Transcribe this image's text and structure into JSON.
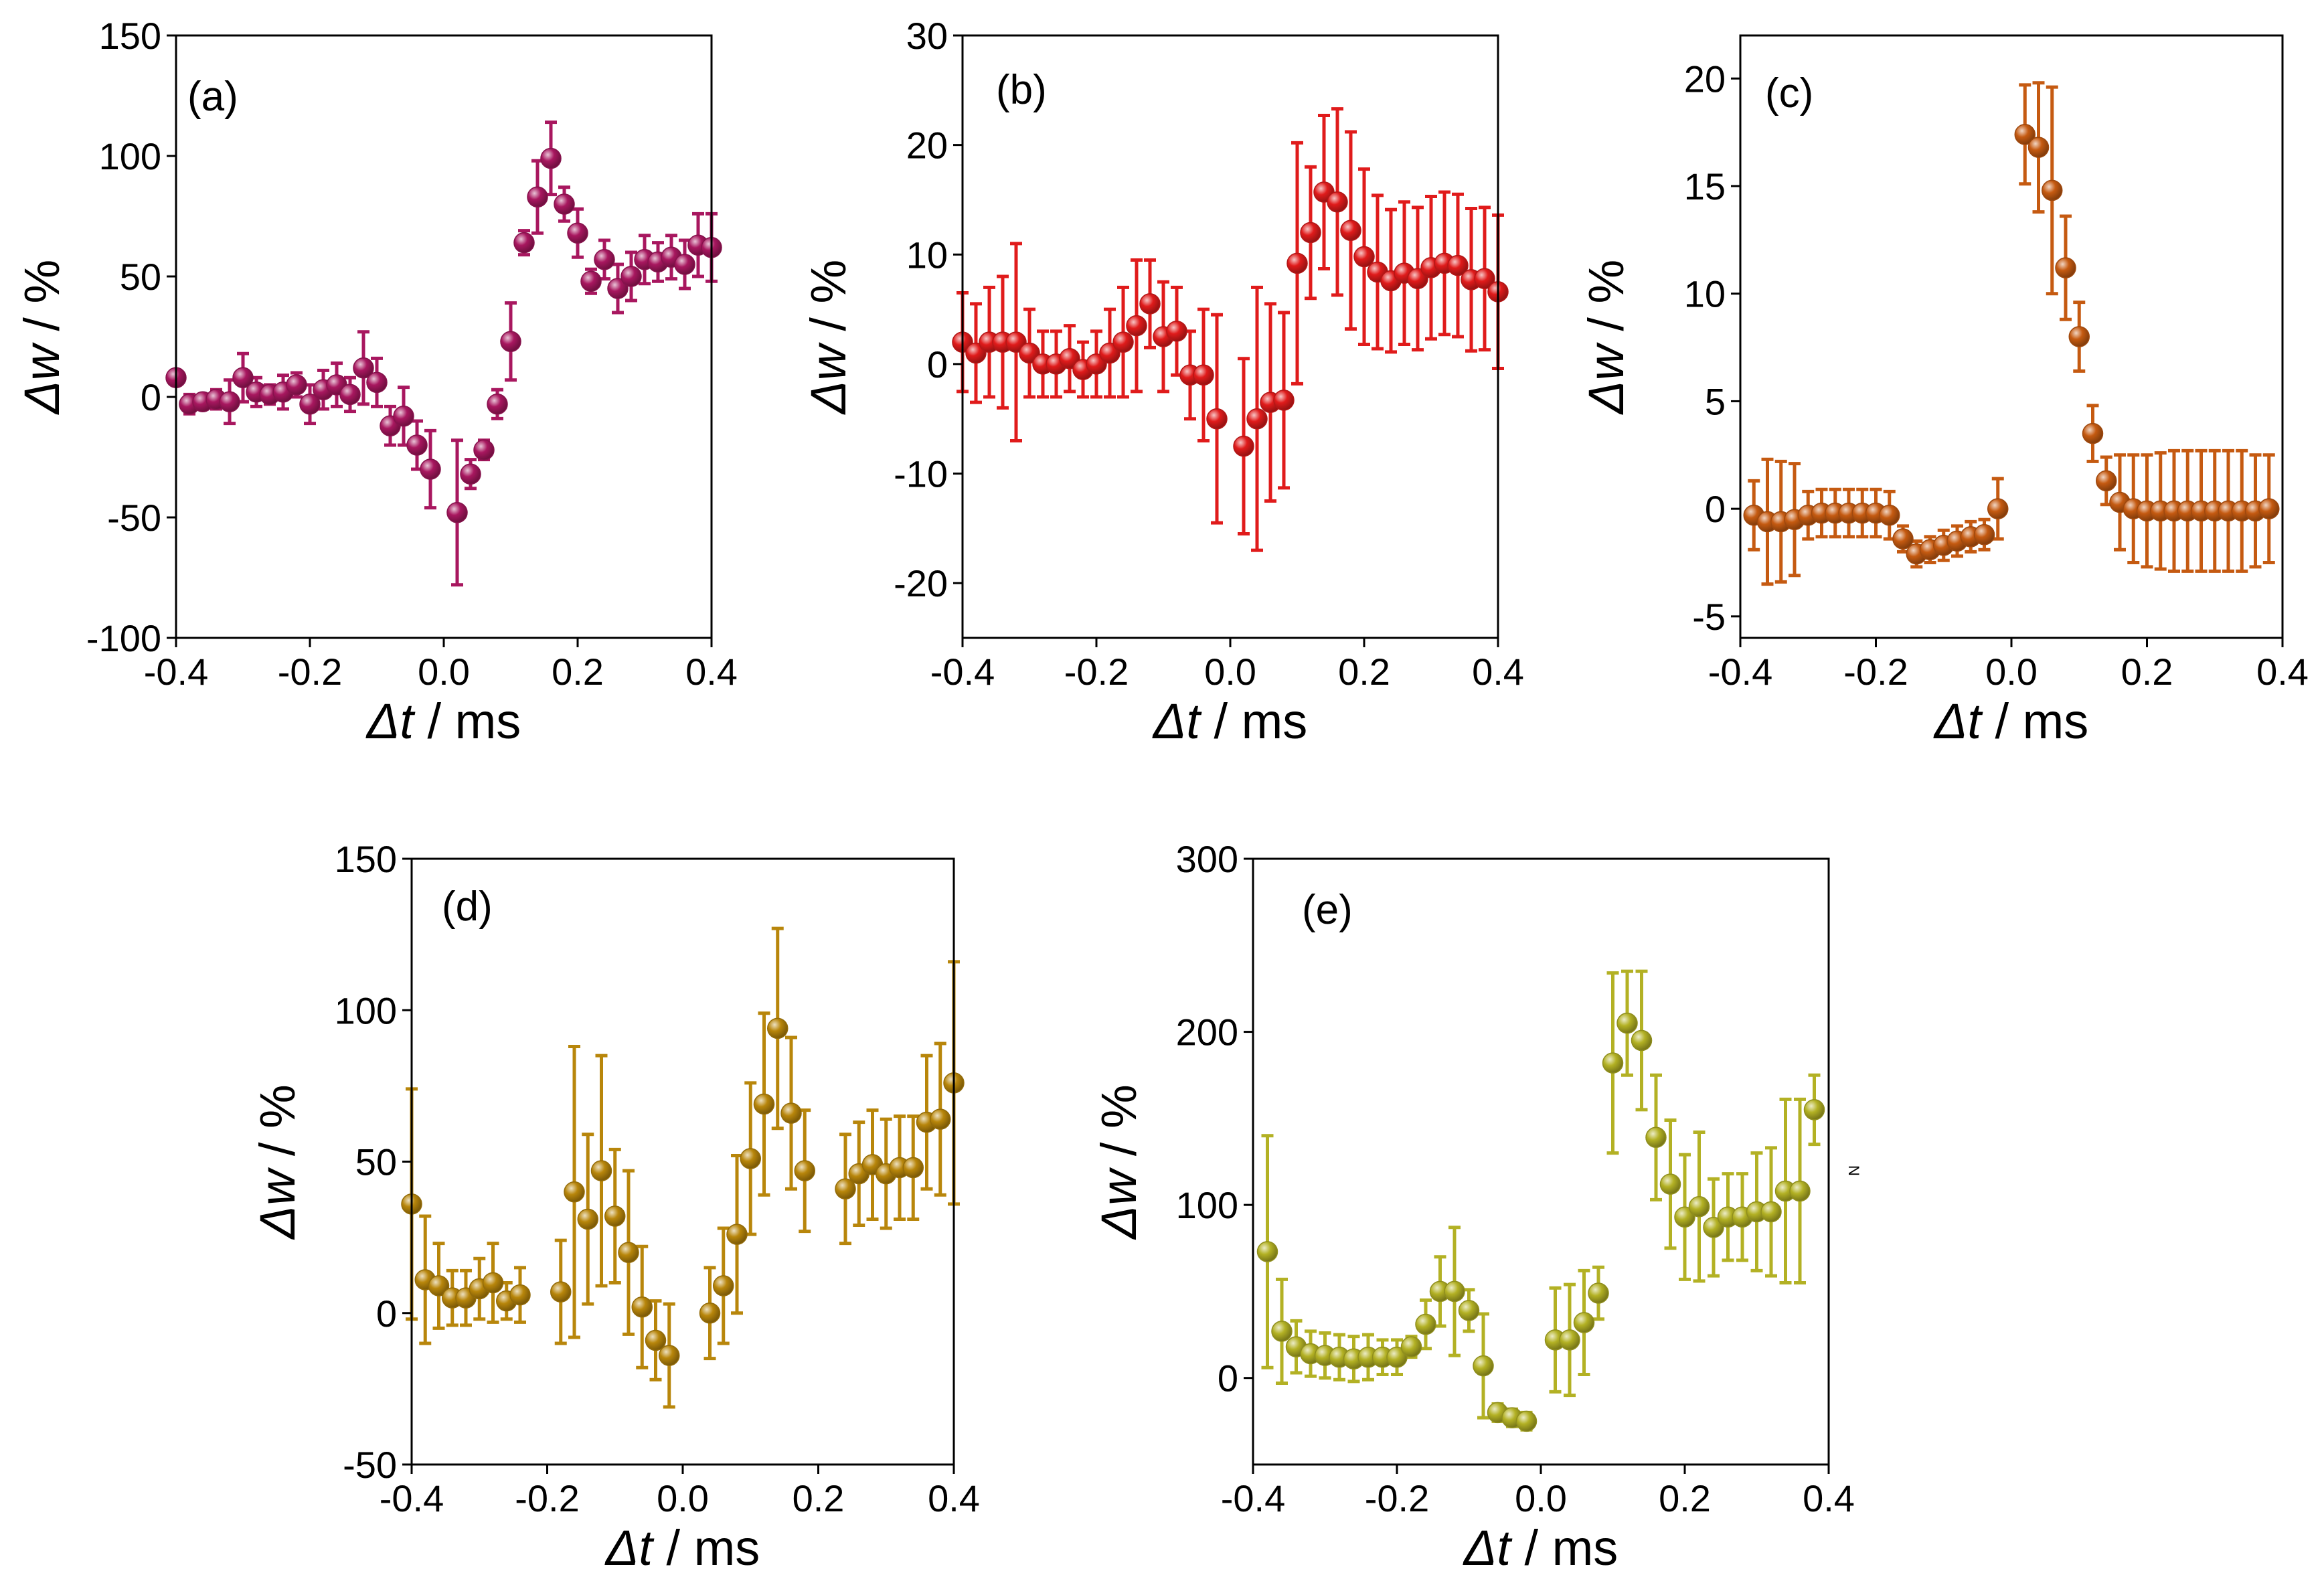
{
  "figure": {
    "margin_label": "N"
  },
  "chart_data": [
    {
      "id": "a",
      "type": "scatter",
      "panel_label": "(a)",
      "xlabel_sym": "Δt",
      "xlabel_unit": "/ ms",
      "ylabel_sym": "Δw",
      "ylabel_unit": "/ %",
      "xlim": [
        -0.4,
        0.4
      ],
      "ylim": [
        -100,
        150
      ],
      "xticks": [
        -0.4,
        -0.2,
        0.0,
        0.2,
        0.4
      ],
      "xtick_labels": [
        "-0.4",
        "-0.2",
        "0.0",
        "0.2",
        "0.4"
      ],
      "yticks": [
        -100,
        -50,
        0,
        50,
        100,
        150
      ],
      "ytick_labels": [
        "-100",
        "-50",
        "0",
        "50",
        "100",
        "150"
      ],
      "color": "#a8175f",
      "x": [
        -0.4,
        -0.38,
        -0.36,
        -0.34,
        -0.32,
        -0.3,
        -0.28,
        -0.26,
        -0.24,
        -0.22,
        -0.2,
        -0.18,
        -0.16,
        -0.14,
        -0.12,
        -0.1,
        -0.08,
        -0.06,
        -0.04,
        -0.02,
        0.02,
        0.04,
        0.06,
        0.08,
        0.1,
        0.12,
        0.14,
        0.16,
        0.18,
        0.2,
        0.22,
        0.24,
        0.26,
        0.28,
        0.3,
        0.32,
        0.34,
        0.36,
        0.38,
        0.4
      ],
      "y": [
        8,
        -3,
        -2,
        -1,
        -2,
        8,
        2,
        1,
        2,
        5,
        -3,
        3,
        5,
        1,
        12,
        6,
        -12,
        -8,
        -20,
        -30,
        -48,
        -32,
        -22,
        -3,
        23,
        64,
        83,
        99,
        80,
        68,
        48,
        57,
        45,
        50,
        57,
        56,
        58,
        55,
        63,
        62
      ],
      "err": [
        3,
        4,
        3,
        4,
        9,
        10,
        6,
        4,
        7,
        5,
        8,
        8,
        9,
        7,
        15,
        10,
        8,
        12,
        10,
        16,
        30,
        6,
        4,
        6,
        16,
        5,
        15,
        15,
        7,
        10,
        5,
        8,
        10,
        10,
        10,
        8,
        9,
        10,
        13,
        14
      ]
    },
    {
      "id": "b",
      "type": "scatter",
      "panel_label": "(b)",
      "xlabel_sym": "Δt",
      "xlabel_unit": "/ ms",
      "ylabel_sym": "Δw",
      "ylabel_unit": "/ %",
      "xlim": [
        -0.4,
        0.4
      ],
      "ylim": [
        -25,
        30
      ],
      "xticks": [
        -0.4,
        -0.2,
        0.0,
        0.2,
        0.4
      ],
      "xtick_labels": [
        "-0.4",
        "-0.2",
        "0.0",
        "0.2",
        "0.4"
      ],
      "yticks": [
        -20,
        -10,
        0,
        10,
        20,
        30
      ],
      "ytick_labels": [
        "-20",
        "-10",
        "0",
        "10",
        "20",
        "30"
      ],
      "color": "#e01b1b",
      "x": [
        -0.4,
        -0.38,
        -0.36,
        -0.34,
        -0.32,
        -0.3,
        -0.28,
        -0.26,
        -0.24,
        -0.22,
        -0.2,
        -0.18,
        -0.16,
        -0.14,
        -0.12,
        -0.1,
        -0.08,
        -0.06,
        -0.04,
        -0.02,
        0.02,
        0.04,
        0.06,
        0.08,
        0.1,
        0.12,
        0.14,
        0.16,
        0.18,
        0.2,
        0.22,
        0.24,
        0.26,
        0.28,
        0.3,
        0.32,
        0.34,
        0.36,
        0.38,
        0.4
      ],
      "y": [
        2,
        1,
        2,
        2,
        2,
        1,
        0,
        0,
        0.5,
        -0.5,
        0,
        1,
        2,
        3.5,
        5.5,
        2.5,
        3,
        -1,
        -1,
        -5,
        -7.5,
        -5,
        -3.5,
        -3.3,
        9.2,
        12,
        15.7,
        14.8,
        12.2,
        9.8,
        8.4,
        7.6,
        8.3,
        7.8,
        8.8,
        9.2,
        9,
        7.7,
        7.8,
        6.6
      ],
      "err": [
        4.5,
        4.5,
        5,
        6,
        9,
        4,
        3,
        3,
        3,
        2.5,
        3,
        4,
        5,
        6,
        4,
        5,
        4,
        4,
        6,
        9.5,
        8,
        12,
        9,
        8,
        11,
        6,
        7,
        8.5,
        9,
        8,
        7,
        6.5,
        6.5,
        6.5,
        6.5,
        6.5,
        6.5,
        6.5,
        6.5,
        7
      ]
    },
    {
      "id": "c",
      "type": "scatter",
      "panel_label": "(c)",
      "xlabel_sym": "Δt",
      "xlabel_unit": "/ ms",
      "ylabel_sym": "Δw",
      "ylabel_unit": "/ %",
      "xlim": [
        -0.4,
        0.4
      ],
      "ylim": [
        -6,
        22
      ],
      "xticks": [
        -0.4,
        -0.2,
        0.0,
        0.2,
        0.4
      ],
      "xtick_labels": [
        "-0.4",
        "-0.2",
        "0.0",
        "0.2",
        "0.4"
      ],
      "yticks": [
        -5,
        0,
        5,
        10,
        15,
        20
      ],
      "ytick_labels": [
        "-5",
        "0",
        "5",
        "10",
        "15",
        "20"
      ],
      "color": "#c55a11",
      "x": [
        -0.38,
        -0.36,
        -0.34,
        -0.32,
        -0.3,
        -0.28,
        -0.26,
        -0.24,
        -0.22,
        -0.2,
        -0.18,
        -0.16,
        -0.14,
        -0.12,
        -0.1,
        -0.08,
        -0.06,
        -0.04,
        -0.02,
        0.02,
        0.04,
        0.06,
        0.08,
        0.1,
        0.12,
        0.14,
        0.16,
        0.18,
        0.2,
        0.22,
        0.24,
        0.26,
        0.28,
        0.3,
        0.32,
        0.34,
        0.36,
        0.38
      ],
      "y": [
        -0.3,
        -0.6,
        -0.6,
        -0.5,
        -0.3,
        -0.2,
        -0.2,
        -0.2,
        -0.2,
        -0.2,
        -0.3,
        -1.4,
        -2.1,
        -1.9,
        -1.7,
        -1.5,
        -1.3,
        -1.2,
        0,
        17.4,
        16.8,
        14.8,
        11.2,
        8,
        3.5,
        1.3,
        0.3,
        0,
        -0.1,
        -0.1,
        -0.1,
        -0.1,
        -0.1,
        -0.1,
        -0.1,
        -0.1,
        -0.1,
        0
      ],
      "err": [
        1.6,
        2.9,
        2.8,
        2.6,
        1.1,
        1.1,
        1.1,
        1.1,
        1.1,
        1.1,
        1.1,
        0.6,
        0.6,
        0.6,
        0.7,
        0.7,
        0.7,
        0.7,
        1.4,
        2.3,
        3.0,
        4.8,
        2.4,
        1.6,
        1.3,
        1.1,
        2.2,
        2.5,
        2.6,
        2.7,
        2.8,
        2.8,
        2.8,
        2.8,
        2.8,
        2.8,
        2.6,
        2.5
      ]
    },
    {
      "id": "d",
      "type": "scatter",
      "panel_label": "(d)",
      "xlabel_sym": "Δt",
      "xlabel_unit": "/ ms",
      "ylabel_sym": "Δw",
      "ylabel_unit": "/ %",
      "xlim": [
        -0.4,
        0.4
      ],
      "ylim": [
        -50,
        150
      ],
      "xticks": [
        -0.4,
        -0.2,
        0.0,
        0.2,
        0.4
      ],
      "xtick_labels": [
        "-0.4",
        "-0.2",
        "0.0",
        "0.2",
        "0.4"
      ],
      "yticks": [
        -50,
        0,
        50,
        100,
        150
      ],
      "ytick_labels": [
        "-50",
        "0",
        "50",
        "100",
        "150"
      ],
      "color": "#b8860b",
      "x": [
        -0.4,
        -0.38,
        -0.36,
        -0.34,
        -0.32,
        -0.3,
        -0.28,
        -0.26,
        -0.24,
        -0.18,
        -0.16,
        -0.14,
        -0.12,
        -0.1,
        -0.08,
        -0.06,
        -0.04,
        -0.02,
        0.04,
        0.06,
        0.08,
        0.1,
        0.12,
        0.14,
        0.16,
        0.18,
        0.24,
        0.26,
        0.28,
        0.3,
        0.32,
        0.34,
        0.36,
        0.38,
        0.4
      ],
      "y": [
        36,
        11,
        9,
        5,
        5,
        8,
        10,
        4,
        6,
        7,
        40,
        31,
        47,
        32,
        20,
        2,
        -9,
        -14,
        0,
        9,
        26,
        51,
        69,
        94,
        66,
        47,
        41,
        46,
        49,
        46,
        48,
        48,
        63,
        64,
        76
      ],
      "err": [
        38,
        21,
        14,
        9,
        9,
        10,
        13,
        6,
        9,
        17,
        48,
        28,
        38,
        22,
        27,
        20,
        13,
        17,
        15,
        19,
        26,
        25,
        30,
        33,
        25,
        20,
        18,
        17,
        18,
        18,
        17,
        17,
        22,
        25,
        40
      ]
    },
    {
      "id": "e",
      "type": "scatter",
      "panel_label": "(e)",
      "xlabel_sym": "Δt",
      "xlabel_unit": "/ ms",
      "ylabel_sym": "Δw",
      "ylabel_unit": "/ %",
      "xlim": [
        -0.4,
        0.4
      ],
      "ylim": [
        -50,
        300
      ],
      "xticks": [
        -0.4,
        -0.2,
        0.0,
        0.2,
        0.4
      ],
      "xtick_labels": [
        "-0.4",
        "-0.2",
        "0.0",
        "0.2",
        "0.4"
      ],
      "yticks": [
        0,
        100,
        200,
        300
      ],
      "ytick_labels": [
        "0",
        "100",
        "200",
        "300"
      ],
      "color": "#b3b124",
      "x": [
        -0.38,
        -0.36,
        -0.34,
        -0.32,
        -0.3,
        -0.28,
        -0.26,
        -0.24,
        -0.22,
        -0.2,
        -0.18,
        -0.16,
        -0.14,
        -0.12,
        -0.1,
        -0.08,
        -0.06,
        -0.04,
        -0.02,
        0.02,
        0.04,
        0.06,
        0.08,
        0.1,
        0.12,
        0.14,
        0.16,
        0.18,
        0.2,
        0.22,
        0.24,
        0.26,
        0.28,
        0.3,
        0.32,
        0.34,
        0.36,
        0.38
      ],
      "y": [
        73,
        27,
        18,
        14,
        13,
        12,
        11,
        12,
        12,
        12,
        18,
        31,
        50,
        50,
        39,
        7,
        -20,
        -23,
        -25,
        22,
        22,
        32,
        49,
        182,
        205,
        195,
        139,
        112,
        93,
        99,
        87,
        93,
        93,
        96,
        96,
        108,
        108,
        155
      ],
      "err": [
        67,
        30,
        15,
        13,
        13,
        13,
        13,
        13,
        10,
        10,
        6,
        14,
        20,
        37,
        12,
        30,
        5,
        5,
        5,
        30,
        32,
        30,
        15,
        52,
        30,
        40,
        36,
        37,
        36,
        43,
        28,
        25,
        25,
        34,
        37,
        53,
        53,
        20
      ]
    }
  ]
}
